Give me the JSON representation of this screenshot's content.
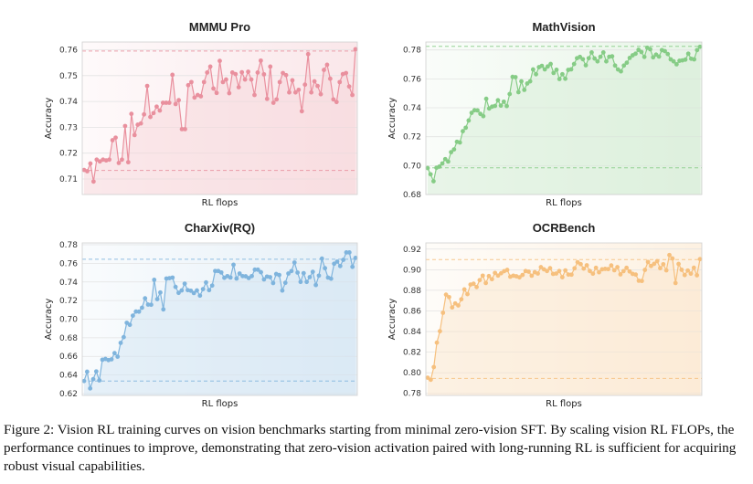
{
  "caption": "Figure 2: Vision RL training curves on vision benchmarks starting from minimal zero-vision SFT. By scaling vision RL FLOPs, the performance continues to improve, demonstrating that zero-vision activation paired with long-running RL is sufficient for acquiring robust visual capabilities.",
  "chart_data": [
    {
      "type": "line",
      "title": "MMMU Pro",
      "xlabel": "RL flops",
      "ylabel": "Accuracy",
      "ylim": [
        0.704,
        0.763
      ],
      "yticks": [
        "0.71",
        "0.72",
        "0.73",
        "0.74",
        "0.75",
        "0.76"
      ],
      "ytick_values": [
        0.71,
        0.72,
        0.73,
        0.74,
        0.75,
        0.76
      ],
      "color": "#e9909e",
      "fill": "#f6d3d8",
      "hlines": [
        0.7595,
        0.7133
      ],
      "grid": true,
      "values": [
        0.7135,
        0.713,
        0.716,
        0.709,
        0.7175,
        0.7168,
        0.7175,
        0.7172,
        0.7175,
        0.725,
        0.726,
        0.7162,
        0.7175,
        0.7305,
        0.7165,
        0.7352,
        0.727,
        0.731,
        0.7315,
        0.735,
        0.746,
        0.734,
        0.7355,
        0.738,
        0.7365,
        0.7395,
        0.7395,
        0.7395,
        0.7503,
        0.739,
        0.7405,
        0.7293,
        0.7293,
        0.7463,
        0.7475,
        0.7415,
        0.7425,
        0.742,
        0.7475,
        0.7512,
        0.7535,
        0.745,
        0.7433,
        0.7557,
        0.7475,
        0.7485,
        0.7432,
        0.7512,
        0.7506,
        0.7455,
        0.7513,
        0.7485,
        0.7515,
        0.7485,
        0.7425,
        0.7512,
        0.7558,
        0.7505,
        0.741,
        0.7535,
        0.7395,
        0.7408,
        0.7475,
        0.751,
        0.7502,
        0.7435,
        0.7482,
        0.7435,
        0.7445,
        0.7362,
        0.7465,
        0.7583,
        0.7435,
        0.7478,
        0.746,
        0.7428,
        0.7522,
        0.7542,
        0.7488,
        0.7408,
        0.7398,
        0.7475,
        0.7506,
        0.751,
        0.7458,
        0.7425,
        0.7602
      ]
    },
    {
      "type": "line",
      "title": "MathVision",
      "xlabel": "RL flops",
      "ylabel": "Accuracy",
      "ylim": [
        0.68,
        0.7855
      ],
      "yticks": [
        "0.68",
        "0.70",
        "0.72",
        "0.74",
        "0.76",
        "0.78"
      ],
      "ytick_values": [
        0.68,
        0.7,
        0.72,
        0.74,
        0.76,
        0.78
      ],
      "color": "#86cc86",
      "fill": "#d3ecd2",
      "hlines": [
        0.7825,
        0.6985
      ],
      "grid": true,
      "values": [
        0.6983,
        0.694,
        0.6892,
        0.6985,
        0.6993,
        0.7015,
        0.7045,
        0.7028,
        0.7093,
        0.7112,
        0.7165,
        0.716,
        0.7238,
        0.7262,
        0.7312,
        0.7365,
        0.7383,
        0.7382,
        0.7358,
        0.7342,
        0.7462,
        0.7395,
        0.7408,
        0.7413,
        0.7452,
        0.7415,
        0.7442,
        0.7412,
        0.7495,
        0.7614,
        0.7612,
        0.7508,
        0.7583,
        0.7524,
        0.7568,
        0.7583,
        0.7665,
        0.7632,
        0.7681,
        0.769,
        0.7666,
        0.7686,
        0.7703,
        0.7641,
        0.7663,
        0.7599,
        0.7632,
        0.7601,
        0.7662,
        0.7666,
        0.7703,
        0.7743,
        0.7752,
        0.7736,
        0.7694,
        0.7743,
        0.7783,
        0.7741,
        0.7721,
        0.7753,
        0.7783,
        0.7721,
        0.7753,
        0.7756,
        0.7692,
        0.7665,
        0.7652,
        0.7692,
        0.7712,
        0.7745,
        0.7763,
        0.7774,
        0.7801,
        0.7786,
        0.7752,
        0.7815,
        0.7805,
        0.7749,
        0.7768,
        0.7754,
        0.7799,
        0.7792,
        0.7772,
        0.7735,
        0.7721,
        0.7701,
        0.7725,
        0.7728,
        0.7733,
        0.7774,
        0.7739,
        0.7735,
        0.7799,
        0.7822
      ]
    },
    {
      "type": "line",
      "title": "CharXiv(RQ)",
      "xlabel": "RL flops",
      "ylabel": "Accuracy",
      "ylim": [
        0.618,
        0.782
      ],
      "yticks": [
        "0.62",
        "0.64",
        "0.66",
        "0.68",
        "0.70",
        "0.72",
        "0.74",
        "0.76",
        "0.78"
      ],
      "ytick_values": [
        0.62,
        0.64,
        0.66,
        0.68,
        0.7,
        0.72,
        0.74,
        0.76,
        0.78
      ],
      "color": "#7fb4dd",
      "fill": "#cfe2f1",
      "hlines": [
        0.7645,
        0.6335
      ],
      "grid": true,
      "values": [
        0.6335,
        0.6435,
        0.6255,
        0.6355,
        0.6438,
        0.6342,
        0.6564,
        0.6572,
        0.656,
        0.6568,
        0.6635,
        0.6597,
        0.6745,
        0.6807,
        0.6961,
        0.6939,
        0.7038,
        0.7082,
        0.7081,
        0.7123,
        0.7224,
        0.7157,
        0.7155,
        0.7423,
        0.7215,
        0.7287,
        0.7105,
        0.7437,
        0.7441,
        0.7447,
        0.7347,
        0.7283,
        0.7309,
        0.7382,
        0.7312,
        0.7306,
        0.7281,
        0.7309,
        0.7253,
        0.7323,
        0.7395,
        0.7312,
        0.7361,
        0.7518,
        0.7518,
        0.7502,
        0.7445,
        0.7463,
        0.7448,
        0.7585,
        0.7437,
        0.7491,
        0.7463,
        0.7461,
        0.7442,
        0.7463,
        0.7532,
        0.7532,
        0.7505,
        0.7428,
        0.7458,
        0.7452,
        0.7388,
        0.7486,
        0.7475,
        0.7308,
        0.7391,
        0.7491,
        0.7517,
        0.7609,
        0.7501,
        0.7401,
        0.7495,
        0.7401,
        0.7452,
        0.7509,
        0.7367,
        0.7468,
        0.7651,
        0.7548,
        0.7447,
        0.7435,
        0.7596,
        0.7619,
        0.7571,
        0.7638,
        0.7718,
        0.7718,
        0.7563,
        0.7659
      ]
    },
    {
      "type": "line",
      "title": "OCRBench",
      "xlabel": "RL flops",
      "ylabel": "Accuracy",
      "ylim": [
        0.778,
        0.926
      ],
      "yticks": [
        "0.78",
        "0.80",
        "0.82",
        "0.84",
        "0.86",
        "0.88",
        "0.90",
        "0.92"
      ],
      "ytick_values": [
        0.78,
        0.8,
        0.82,
        0.84,
        0.86,
        0.88,
        0.9,
        0.92
      ],
      "color": "#f6c07e",
      "fill": "#fbe5c9",
      "hlines": [
        0.9098,
        0.7945
      ],
      "grid": true,
      "values": [
        0.7952,
        0.7932,
        0.8055,
        0.8292,
        0.8403,
        0.8582,
        0.8758,
        0.8734,
        0.8634,
        0.8673,
        0.8653,
        0.8713,
        0.8809,
        0.8763,
        0.8856,
        0.8864,
        0.8832,
        0.8899,
        0.8942,
        0.8871,
        0.8938,
        0.8908,
        0.8969,
        0.8943,
        0.8966,
        0.8986,
        0.8998,
        0.8932,
        0.8942,
        0.8936,
        0.8926,
        0.8949,
        0.8987,
        0.8981,
        0.8942,
        0.8976,
        0.8963,
        0.9025,
        0.9004,
        0.8987,
        0.9015,
        0.8959,
        0.8963,
        0.8987,
        0.8927,
        0.8993,
        0.8953,
        0.8952,
        0.9014,
        0.9073,
        0.9054,
        0.9011,
        0.9043,
        0.8987,
        0.8962,
        0.9018,
        0.8975,
        0.9004,
        0.9008,
        0.9006,
        0.9041,
        0.8995,
        0.9025,
        0.8955,
        0.8986,
        0.9018,
        0.8983,
        0.8959,
        0.8953,
        0.8893,
        0.8891,
        0.8998,
        0.9075,
        0.9036,
        0.9057,
        0.9083,
        0.9015,
        0.9053,
        0.8994,
        0.9142,
        0.9109,
        0.8871,
        0.9056,
        0.8999,
        0.8948,
        0.8992,
        0.8962,
        0.9019,
        0.8946,
        0.9103
      ]
    }
  ]
}
